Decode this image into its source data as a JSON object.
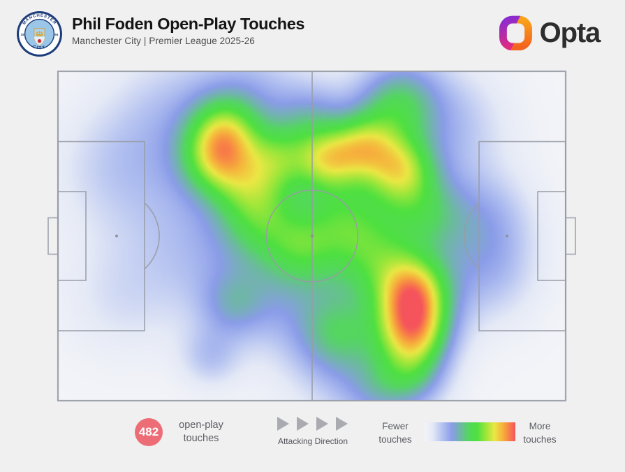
{
  "header": {
    "title": "Phil Foden Open-Play Touches",
    "subtitle": "Manchester City | Premier League 2025-26",
    "club_badge": {
      "club": "Manchester City",
      "ring_top": "MANCHESTER",
      "ring_bottom": "CITY",
      "year_left": "18",
      "year_right": "94",
      "navy": "#1d3d7a",
      "sky": "#9cc6e8"
    },
    "brand": {
      "wordmark": "Opta",
      "gradient_left_top": "#8a2bd0",
      "gradient_left_bottom": "#e02a80",
      "gradient_right_top": "#f9a21b",
      "gradient_right_bottom": "#f4641e"
    }
  },
  "footer": {
    "touch_count": {
      "value": "482",
      "label_line1": "open-play",
      "label_line2": "touches",
      "circle_color": "#ed6d77"
    },
    "attacking_direction": {
      "label": "Attacking Direction",
      "arrow_color": "#a9abb0",
      "arrow_count": 4
    },
    "legend": {
      "left_line1": "Fewer",
      "left_line2": "touches",
      "right_line1": "More",
      "right_line2": "touches"
    }
  },
  "chart_data": {
    "type": "heatmap",
    "title": "Phil Foden Open-Play Touches",
    "player": "Phil Foden",
    "team": "Manchester City",
    "competition": "Premier League 2025-26",
    "total_open_play_touches": 482,
    "attacking_direction": "left-to-right",
    "pitch": {
      "orientation": "horizontal",
      "line_color": "#979ca6",
      "notes": "densest zone right-half outside right penalty box lower channel; secondary hotspot right attacking midfield; broad green left-of-centre midfield"
    },
    "blob_format": [
      "x_rel_0to1",
      "y_rel_0to1",
      "sigma_rel_pitch_width",
      "amplitude"
    ],
    "blobs": [
      [
        0.5,
        0.36,
        0.15,
        0.12
      ],
      [
        0.62,
        0.58,
        0.12,
        0.16
      ],
      [
        0.2,
        0.4,
        0.12,
        0.11
      ],
      [
        0.32,
        0.58,
        0.1,
        0.13
      ],
      [
        0.23,
        0.12,
        0.09,
        0.15
      ],
      [
        0.38,
        0.06,
        0.07,
        0.15
      ],
      [
        0.77,
        0.16,
        0.08,
        0.18
      ],
      [
        0.84,
        0.45,
        0.07,
        0.2
      ],
      [
        0.85,
        0.62,
        0.07,
        0.16
      ],
      [
        0.45,
        0.7,
        0.08,
        0.13
      ],
      [
        0.12,
        0.7,
        0.08,
        0.09
      ],
      [
        0.56,
        0.93,
        0.08,
        0.12
      ],
      [
        0.1,
        0.28,
        0.08,
        0.09
      ],
      [
        0.68,
        0.05,
        0.06,
        0.15
      ],
      [
        0.33,
        0.18,
        0.05,
        0.4
      ],
      [
        0.31,
        0.27,
        0.05,
        0.38
      ],
      [
        0.38,
        0.34,
        0.055,
        0.32
      ],
      [
        0.44,
        0.26,
        0.045,
        0.28
      ],
      [
        0.53,
        0.27,
        0.042,
        0.4
      ],
      [
        0.4,
        0.46,
        0.055,
        0.24
      ],
      [
        0.48,
        0.54,
        0.05,
        0.24
      ],
      [
        0.56,
        0.43,
        0.058,
        0.26
      ],
      [
        0.62,
        0.56,
        0.058,
        0.26
      ],
      [
        0.72,
        0.43,
        0.055,
        0.26
      ],
      [
        0.55,
        0.8,
        0.055,
        0.26
      ],
      [
        0.66,
        0.12,
        0.055,
        0.26
      ],
      [
        0.5,
        0.15,
        0.05,
        0.22
      ],
      [
        0.7,
        0.93,
        0.048,
        0.28
      ],
      [
        0.63,
        0.97,
        0.05,
        0.18
      ],
      [
        0.345,
        0.71,
        0.045,
        0.18
      ],
      [
        0.3,
        0.87,
        0.042,
        0.16
      ],
      [
        0.6,
        0.23,
        0.045,
        0.45
      ],
      [
        0.675,
        0.3,
        0.048,
        0.48
      ],
      [
        0.7,
        0.665,
        0.05,
        0.58
      ],
      [
        0.7,
        0.79,
        0.052,
        0.66
      ]
    ],
    "colormap": [
      [
        0.0,
        243,
        244,
        248
      ],
      [
        0.09,
        228,
        233,
        246
      ],
      [
        0.2,
        178,
        192,
        240
      ],
      [
        0.3,
        138,
        156,
        232
      ],
      [
        0.4,
        108,
        185,
        160
      ],
      [
        0.48,
        84,
        214,
        96
      ],
      [
        0.58,
        78,
        224,
        64
      ],
      [
        0.68,
        160,
        230,
        58
      ],
      [
        0.77,
        235,
        231,
        68
      ],
      [
        0.86,
        246,
        178,
        60
      ],
      [
        0.93,
        247,
        130,
        70
      ],
      [
        1.0,
        245,
        84,
        92
      ]
    ],
    "legend": {
      "left": "Fewer touches",
      "right": "More touches",
      "position": "bottom-right"
    }
  }
}
